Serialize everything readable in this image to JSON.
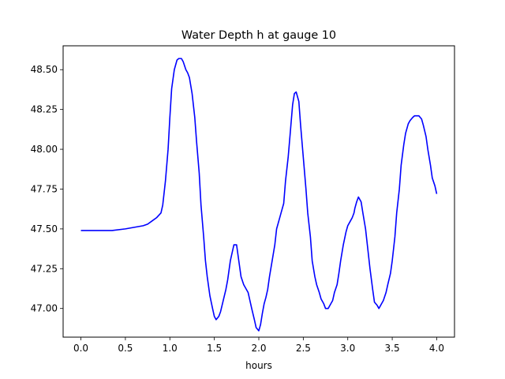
{
  "chart_data": {
    "type": "line",
    "title": "Water Depth h at gauge 10",
    "xlabel": "hours",
    "ylabel": "",
    "xlim": [
      -0.2,
      4.2
    ],
    "ylim": [
      46.82,
      48.65
    ],
    "grid": false,
    "xticks": [
      0.0,
      0.5,
      1.0,
      1.5,
      2.0,
      2.5,
      3.0,
      3.5,
      4.0
    ],
    "xtick_labels": [
      "0.0",
      "0.5",
      "1.0",
      "1.5",
      "2.0",
      "2.5",
      "3.0",
      "3.5",
      "4.0"
    ],
    "yticks": [
      47.0,
      47.25,
      47.5,
      47.75,
      48.0,
      48.25,
      48.5
    ],
    "ytick_labels": [
      "47.00",
      "47.25",
      "47.50",
      "47.75",
      "48.00",
      "48.25",
      "48.50"
    ],
    "series": [
      {
        "color": "#0000ff",
        "x": [
          0.0,
          0.2,
          0.35,
          0.5,
          0.6,
          0.7,
          0.75,
          0.8,
          0.85,
          0.9,
          0.92,
          0.95,
          0.98,
          1.0,
          1.02,
          1.05,
          1.08,
          1.1,
          1.13,
          1.15,
          1.18,
          1.2,
          1.22,
          1.25,
          1.28,
          1.3,
          1.33,
          1.35,
          1.38,
          1.4,
          1.42,
          1.45,
          1.48,
          1.5,
          1.52,
          1.55,
          1.57,
          1.6,
          1.63,
          1.65,
          1.68,
          1.7,
          1.72,
          1.75,
          1.77,
          1.8,
          1.83,
          1.85,
          1.88,
          1.9,
          1.92,
          1.95,
          1.97,
          2.0,
          2.02,
          2.04,
          2.06,
          2.08,
          2.1,
          2.12,
          2.15,
          2.18,
          2.2,
          2.23,
          2.25,
          2.28,
          2.3,
          2.33,
          2.35,
          2.38,
          2.4,
          2.42,
          2.45,
          2.47,
          2.5,
          2.53,
          2.55,
          2.58,
          2.6,
          2.63,
          2.65,
          2.68,
          2.7,
          2.73,
          2.75,
          2.78,
          2.8,
          2.83,
          2.85,
          2.88,
          2.9,
          2.92,
          2.95,
          2.98,
          3.0,
          3.03,
          3.05,
          3.07,
          3.08,
          3.1,
          3.12,
          3.15,
          3.17,
          3.2,
          3.22,
          3.25,
          3.28,
          3.3,
          3.33,
          3.35,
          3.38,
          3.4,
          3.43,
          3.45,
          3.48,
          3.5,
          3.53,
          3.55,
          3.58,
          3.6,
          3.63,
          3.65,
          3.68,
          3.7,
          3.73,
          3.75,
          3.78,
          3.8,
          3.83,
          3.85,
          3.88,
          3.9,
          3.93,
          3.95,
          3.98,
          4.0
        ],
        "y": [
          47.49,
          47.49,
          47.49,
          47.5,
          47.51,
          47.52,
          47.53,
          47.55,
          47.57,
          47.6,
          47.65,
          47.8,
          48.0,
          48.2,
          48.38,
          48.5,
          48.56,
          48.57,
          48.57,
          48.55,
          48.5,
          48.48,
          48.45,
          48.35,
          48.2,
          48.05,
          47.85,
          47.65,
          47.45,
          47.3,
          47.2,
          47.08,
          47.0,
          46.95,
          46.93,
          46.95,
          46.98,
          47.05,
          47.12,
          47.18,
          47.3,
          47.35,
          47.4,
          47.4,
          47.32,
          47.2,
          47.15,
          47.13,
          47.1,
          47.05,
          47.0,
          46.93,
          46.88,
          46.86,
          46.9,
          46.97,
          47.03,
          47.07,
          47.12,
          47.2,
          47.3,
          47.4,
          47.5,
          47.56,
          47.6,
          47.66,
          47.8,
          47.95,
          48.08,
          48.28,
          48.35,
          48.36,
          48.3,
          48.15,
          47.95,
          47.75,
          47.6,
          47.45,
          47.3,
          47.2,
          47.15,
          47.1,
          47.06,
          47.03,
          47.0,
          47.0,
          47.02,
          47.05,
          47.1,
          47.15,
          47.22,
          47.3,
          47.4,
          47.48,
          47.52,
          47.55,
          47.57,
          47.6,
          47.63,
          47.67,
          47.7,
          47.67,
          47.6,
          47.5,
          47.4,
          47.25,
          47.12,
          47.04,
          47.02,
          47.0,
          47.03,
          47.05,
          47.1,
          47.15,
          47.22,
          47.3,
          47.45,
          47.6,
          47.75,
          47.9,
          48.03,
          48.1,
          48.16,
          48.18,
          48.2,
          48.21,
          48.21,
          48.21,
          48.19,
          48.15,
          48.08,
          48.0,
          47.9,
          47.82,
          47.77,
          47.72
        ]
      }
    ]
  }
}
